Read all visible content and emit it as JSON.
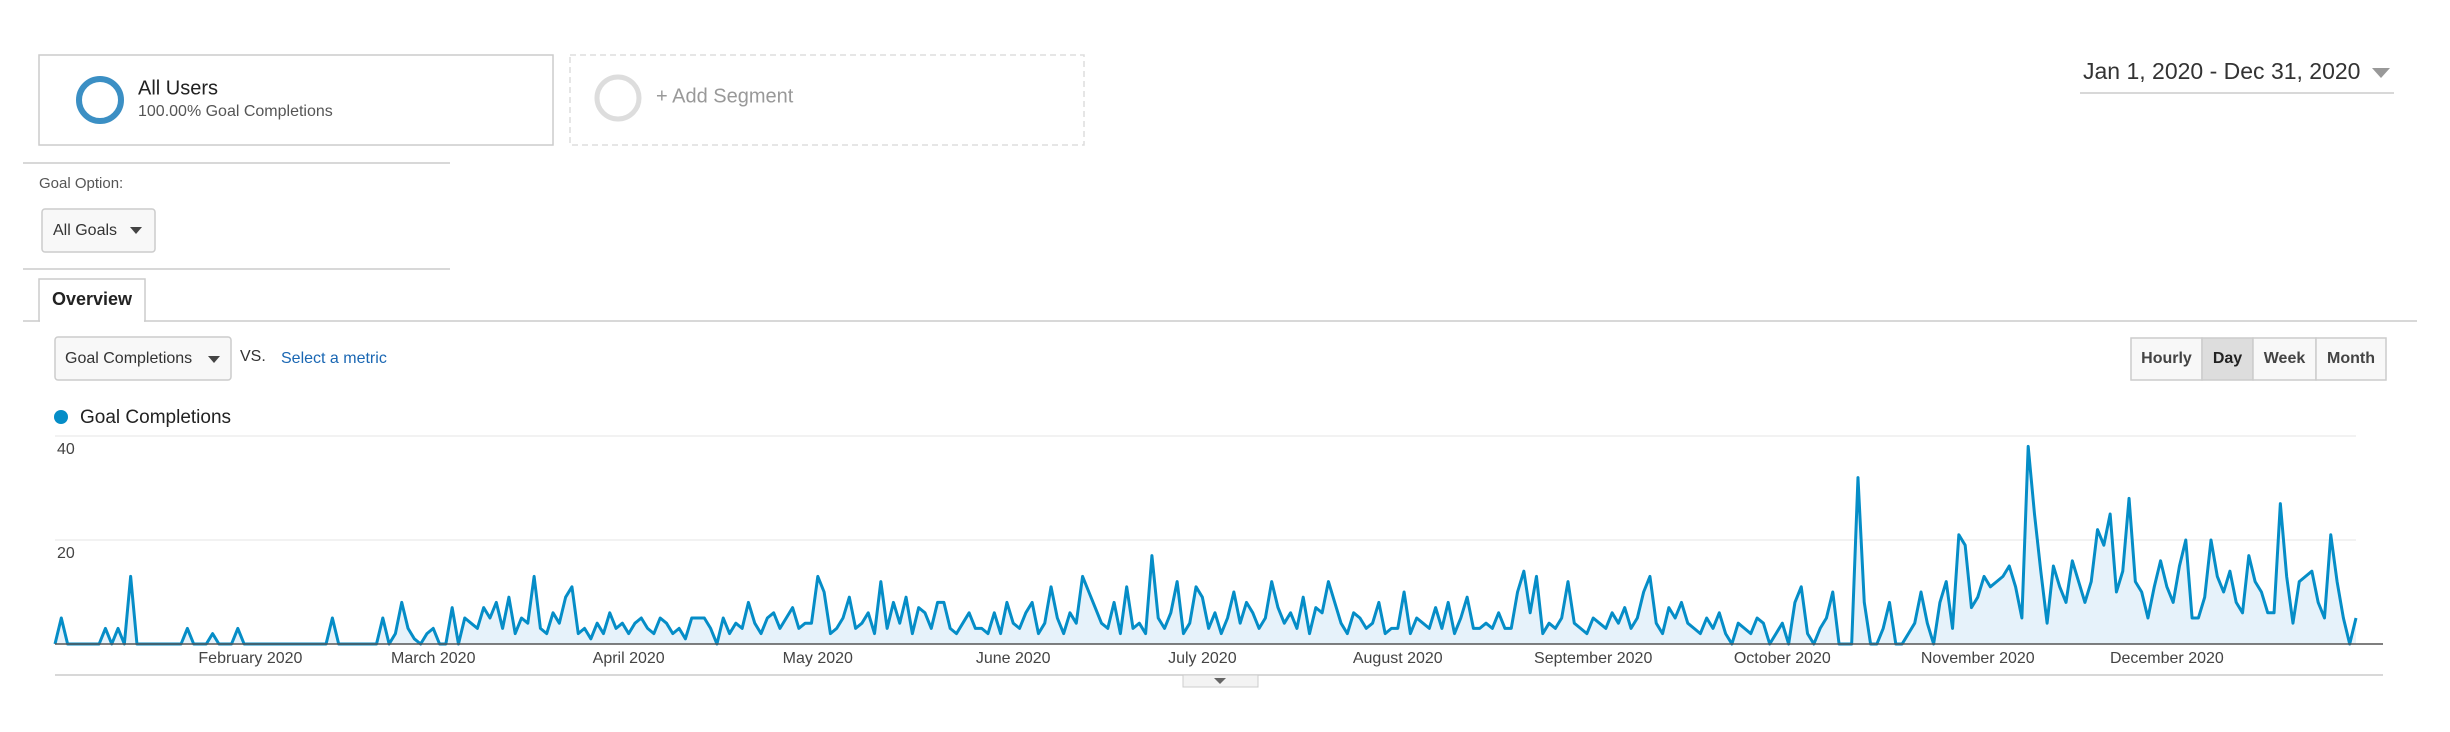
{
  "segments": {
    "primary": {
      "name": "All Users",
      "detail": "100.00% Goal Completions"
    },
    "add": "+ Add Segment"
  },
  "date_range": "Jan 1, 2020 - Dec 31, 2020",
  "goal_option": {
    "label": "Goal Option:",
    "value": "All Goals"
  },
  "tabs": [
    "Overview"
  ],
  "metric_picker": {
    "metric": "Goal Completions",
    "vs": "VS.",
    "select": "Select a metric"
  },
  "granularity": {
    "options": [
      "Hourly",
      "Day",
      "Week",
      "Month"
    ],
    "selected": "Day"
  },
  "chart_data": {
    "type": "area",
    "categories": [
      null,
      null,
      null,
      null,
      null,
      null,
      null,
      null,
      null,
      null,
      null,
      null,
      null,
      null,
      null,
      null,
      null,
      null,
      null,
      null,
      null,
      null,
      null,
      null,
      null,
      null,
      null,
      null,
      null,
      null,
      null,
      "February 2020",
      null,
      null,
      null,
      null,
      null,
      null,
      null,
      null,
      null,
      null,
      null,
      null,
      null,
      null,
      null,
      null,
      null,
      null,
      null,
      null,
      null,
      null,
      null,
      null,
      null,
      null,
      null,
      null,
      "March 2020",
      null,
      null,
      null,
      null,
      null,
      null,
      null,
      null,
      null,
      null,
      null,
      null,
      null,
      null,
      null,
      null,
      null,
      null,
      null,
      null,
      null,
      null,
      null,
      null,
      null,
      null,
      null,
      null,
      null,
      null,
      "April 2020",
      null,
      null,
      null,
      null,
      null,
      null,
      null,
      null,
      null,
      null,
      null,
      null,
      null,
      null,
      null,
      null,
      null,
      null,
      null,
      null,
      null,
      null,
      null,
      null,
      null,
      null,
      null,
      null,
      null,
      "May 2020",
      null,
      null,
      null,
      null,
      null,
      null,
      null,
      null,
      null,
      null,
      null,
      null,
      null,
      null,
      null,
      null,
      null,
      null,
      null,
      null,
      null,
      null,
      null,
      null,
      null,
      null,
      null,
      null,
      null,
      null,
      "June 2020",
      null,
      null,
      null,
      null,
      null,
      null,
      null,
      null,
      null,
      null,
      null,
      null,
      null,
      null,
      null,
      null,
      null,
      null,
      null,
      null,
      null,
      null,
      null,
      null,
      null,
      null,
      null,
      null,
      null,
      "July 2020",
      null,
      null,
      null,
      null,
      null,
      null,
      null,
      null,
      null,
      null,
      null,
      null,
      null,
      null,
      null,
      null,
      null,
      null,
      null,
      null,
      null,
      null,
      null,
      null,
      null,
      null,
      null,
      null,
      null,
      null,
      "August 2020",
      null,
      null,
      null,
      null,
      null,
      null,
      null,
      null,
      null,
      null,
      null,
      null,
      null,
      null,
      null,
      null,
      null,
      null,
      null,
      null,
      null,
      null,
      null,
      null,
      null,
      null,
      null,
      null,
      null,
      null,
      "September 2020",
      null,
      null,
      null,
      null,
      null,
      null,
      null,
      null,
      null,
      null,
      null,
      null,
      null,
      null,
      null,
      null,
      null,
      null,
      null,
      null,
      null,
      null,
      null,
      null,
      null,
      null,
      null,
      null,
      null,
      "October 2020",
      null,
      null,
      null,
      null,
      null,
      null,
      null,
      null,
      null,
      null,
      null,
      null,
      null,
      null,
      null,
      null,
      null,
      null,
      null,
      null,
      null,
      null,
      null,
      null,
      null,
      null,
      null,
      null,
      null,
      null,
      "November 2020",
      null,
      null,
      null,
      null,
      null,
      null,
      null,
      null,
      null,
      null,
      null,
      null,
      null,
      null,
      null,
      null,
      null,
      null,
      null,
      null,
      null,
      null,
      null,
      null,
      null,
      null,
      null,
      null,
      null,
      "December 2020",
      null,
      null,
      null,
      null,
      null,
      null,
      null,
      null,
      null,
      null,
      null,
      null,
      null,
      null,
      null,
      null,
      null,
      null,
      null,
      null,
      null,
      null,
      null,
      null,
      null,
      null,
      null,
      null,
      null,
      null
    ],
    "series": [
      {
        "name": "Goal Completions",
        "color": "#058dc7",
        "values": [
          0,
          5,
          0,
          0,
          0,
          0,
          0,
          0,
          3,
          0,
          3,
          0,
          13,
          0,
          0,
          0,
          0,
          0,
          0,
          0,
          0,
          3,
          0,
          0,
          0,
          2,
          0,
          0,
          0,
          3,
          0,
          0,
          0,
          0,
          0,
          0,
          0,
          0,
          0,
          0,
          0,
          0,
          0,
          0,
          5,
          0,
          0,
          0,
          0,
          0,
          0,
          0,
          5,
          0,
          2,
          8,
          3,
          1,
          0,
          2,
          3,
          0,
          0,
          7,
          0,
          5,
          4,
          3,
          7,
          5,
          8,
          3,
          9,
          2,
          5,
          4,
          13,
          3,
          2,
          6,
          4,
          9,
          11,
          2,
          3,
          1,
          4,
          2,
          6,
          3,
          4,
          2,
          4,
          5,
          3,
          2,
          5,
          4,
          2,
          3,
          1,
          5,
          5,
          5,
          3,
          0,
          5,
          2,
          4,
          3,
          8,
          4,
          2,
          5,
          6,
          3,
          5,
          7,
          3,
          4,
          4,
          13,
          10,
          2,
          3,
          5,
          9,
          3,
          4,
          6,
          2,
          12,
          3,
          8,
          4,
          9,
          2,
          7,
          6,
          3,
          8,
          8,
          3,
          2,
          4,
          6,
          3,
          3,
          2,
          6,
          2,
          8,
          4,
          3,
          6,
          8,
          2,
          4,
          11,
          5,
          2,
          6,
          4,
          13,
          10,
          7,
          4,
          3,
          8,
          2,
          11,
          3,
          4,
          2,
          17,
          5,
          3,
          6,
          12,
          2,
          4,
          11,
          9,
          3,
          6,
          2,
          5,
          10,
          4,
          8,
          6,
          3,
          5,
          12,
          7,
          4,
          6,
          3,
          9,
          2,
          7,
          6,
          12,
          8,
          4,
          2,
          6,
          5,
          3,
          4,
          8,
          2,
          3,
          3,
          10,
          2,
          5,
          4,
          3,
          7,
          3,
          8,
          2,
          5,
          9,
          3,
          3,
          4,
          3,
          6,
          3,
          3,
          10,
          14,
          6,
          13,
          2,
          4,
          3,
          5,
          12,
          4,
          3,
          2,
          5,
          4,
          3,
          6,
          4,
          7,
          3,
          5,
          10,
          13,
          4,
          2,
          7,
          5,
          8,
          4,
          3,
          2,
          5,
          3,
          6,
          2,
          0,
          4,
          3,
          2,
          5,
          4,
          0,
          2,
          4,
          0,
          8,
          11,
          2,
          0,
          3,
          5,
          10,
          0,
          0,
          0,
          32,
          8,
          0,
          0,
          3,
          8,
          0,
          0,
          2,
          4,
          10,
          4,
          0,
          8,
          12,
          3,
          21,
          19,
          7,
          9,
          13,
          11,
          12,
          13,
          15,
          11,
          5,
          38,
          25,
          14,
          4,
          15,
          11,
          8,
          16,
          12,
          8,
          12,
          22,
          19,
          25,
          10,
          14,
          28,
          12,
          10,
          5,
          11,
          16,
          11,
          8,
          15,
          20,
          5,
          5,
          9,
          20,
          13,
          10,
          14,
          8,
          6,
          17,
          12,
          10,
          6,
          6,
          27,
          13,
          4,
          12,
          13,
          14,
          8,
          5,
          21,
          12,
          5,
          0,
          5
        ]
      }
    ],
    "ylim": [
      0,
      40
    ],
    "yticks": [
      20,
      40
    ],
    "grid": true
  }
}
